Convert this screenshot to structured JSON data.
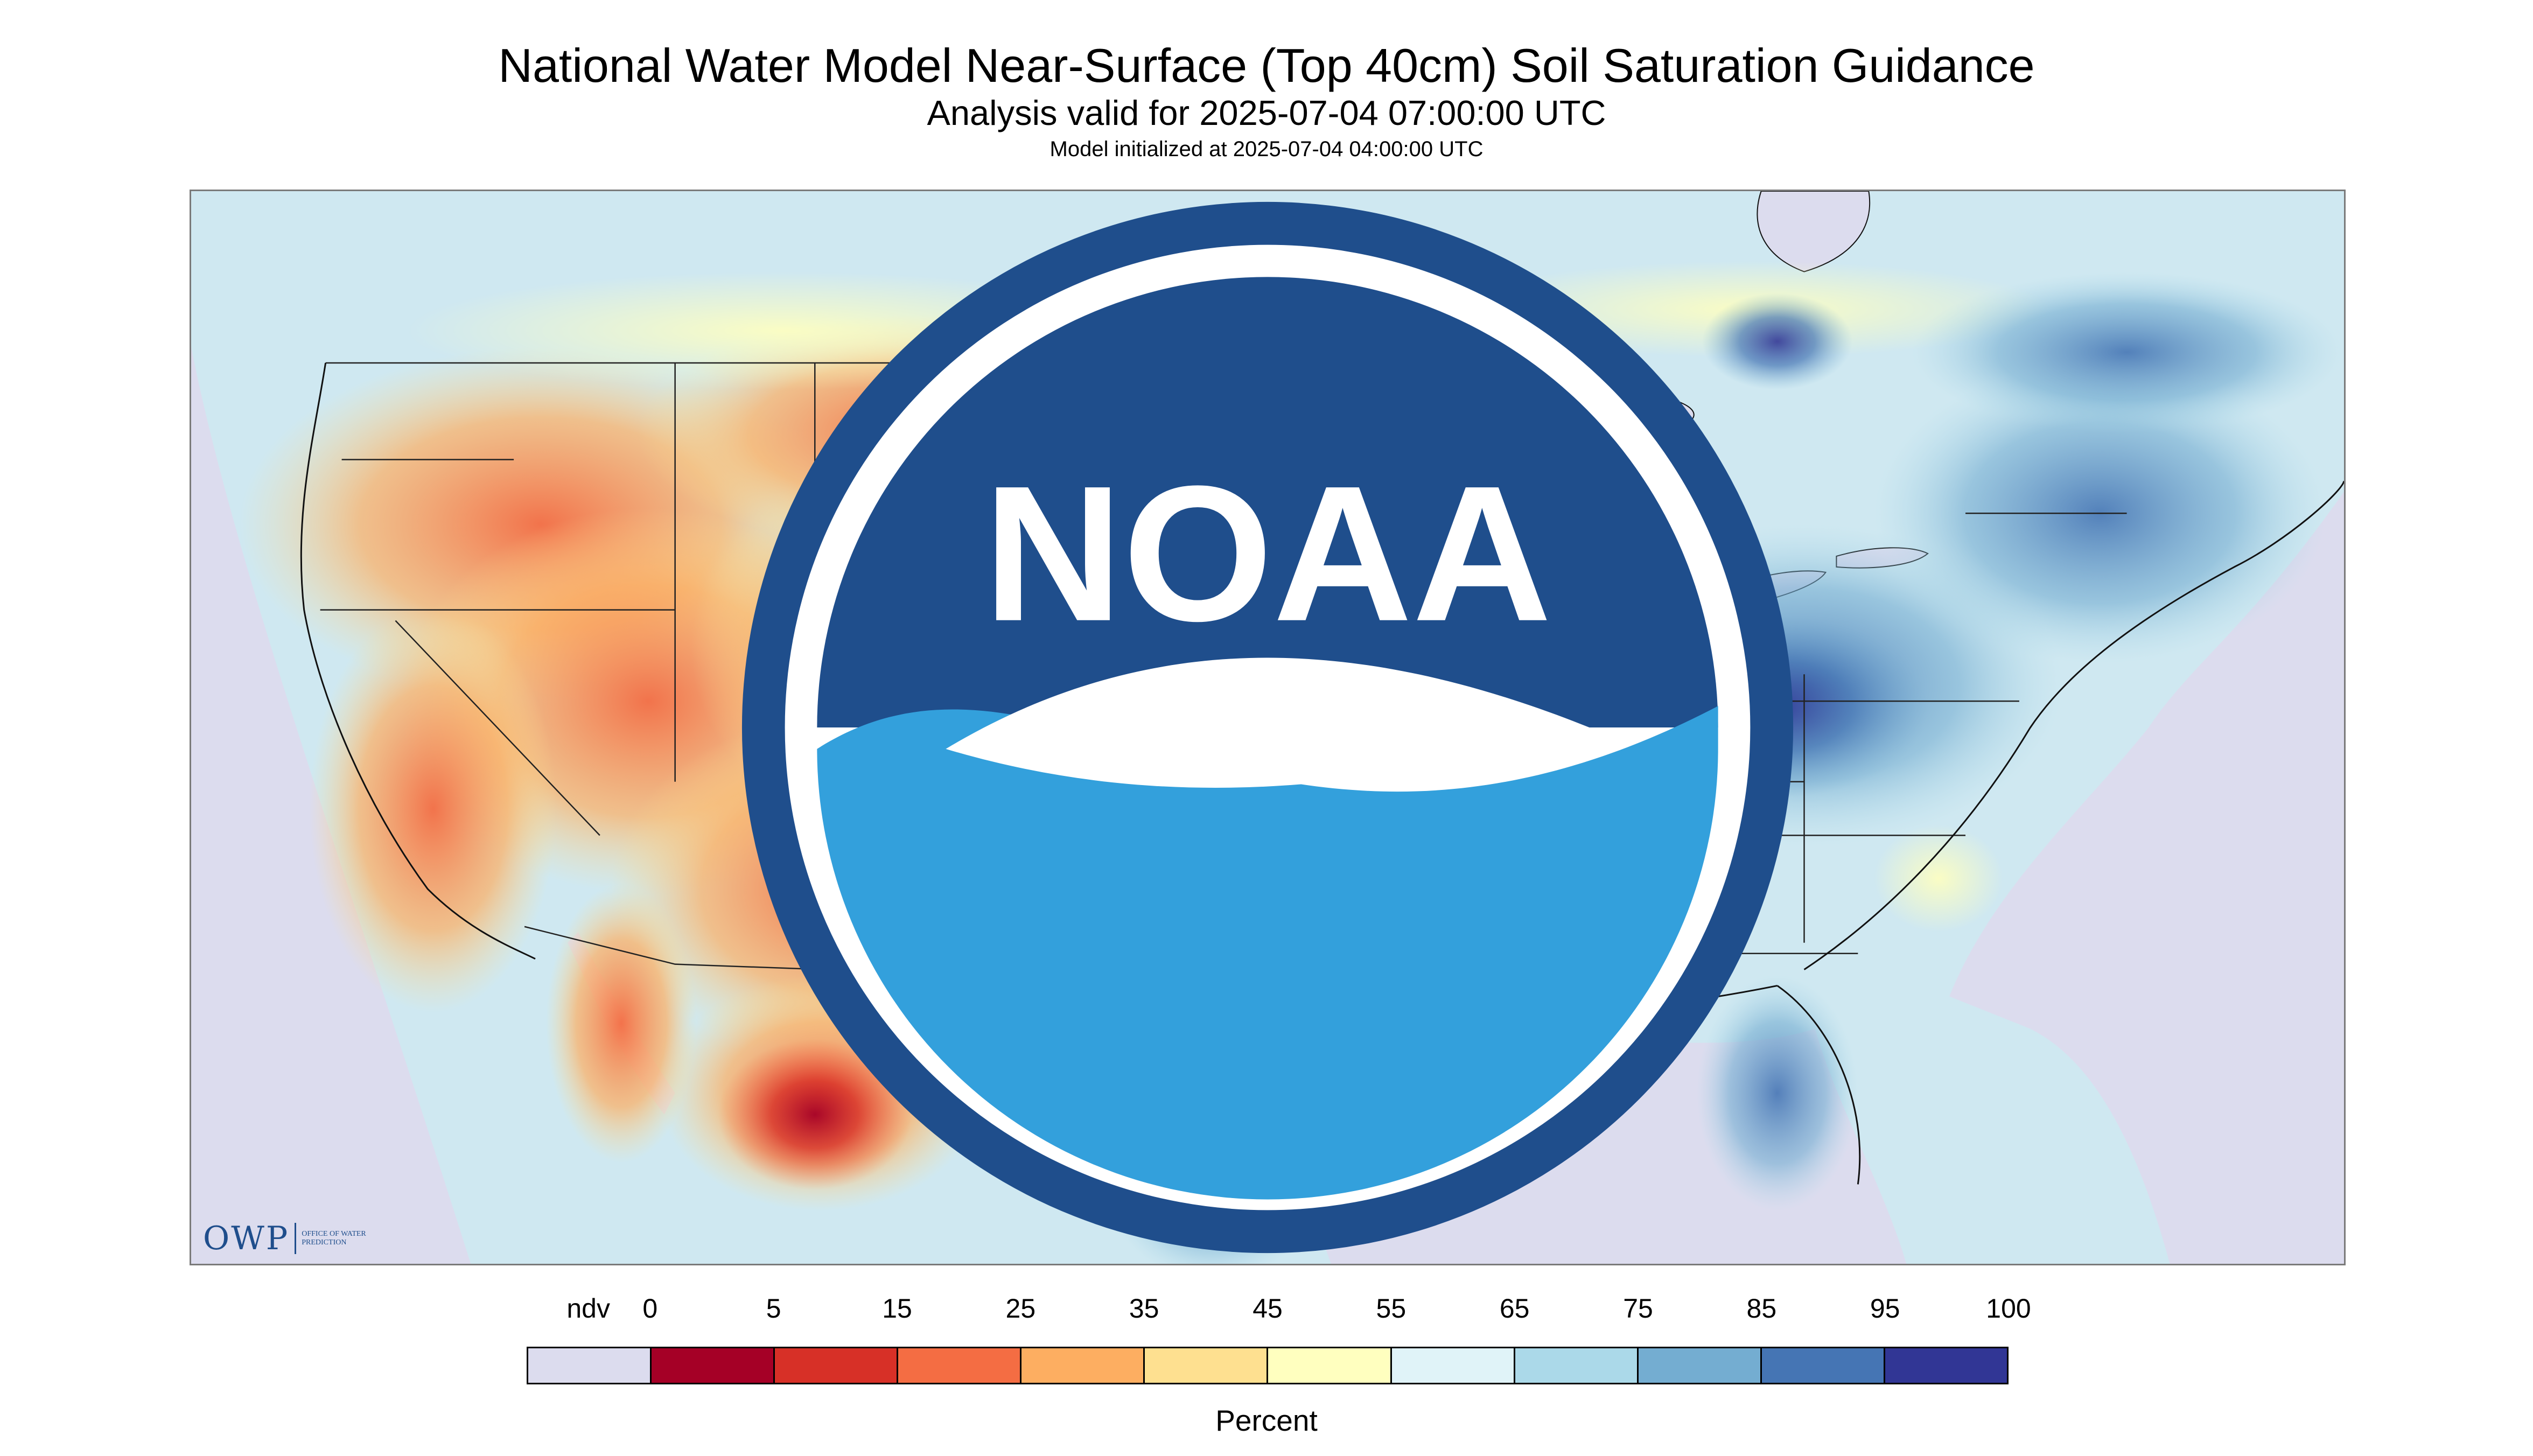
{
  "title": "National Water Model Near-Surface (Top 40cm) Soil Saturation Guidance",
  "subtitle": "Analysis valid for 2025-07-04 07:00:00 UTC",
  "init_line": "Model initialized at 2025-07-04 04:00:00 UTC",
  "logos": {
    "owp_word": "OWP",
    "owp_small": "Office of Water Prediction",
    "noaa_text": "NOAA"
  },
  "legend": {
    "title": "Percent",
    "labels": [
      "ndv",
      "0",
      "5",
      "15",
      "25",
      "35",
      "45",
      "55",
      "65",
      "75",
      "85",
      "95",
      "100"
    ],
    "colors": [
      "#dcdcee",
      "#a50026",
      "#d73027",
      "#f46d43",
      "#fdae61",
      "#fee090",
      "#ffffbf",
      "#e0f3f8",
      "#abd9e9",
      "#74add1",
      "#4575b4",
      "#313695"
    ]
  },
  "map": {
    "no_data_color": "#dcdcee",
    "border_color": "#111111"
  }
}
